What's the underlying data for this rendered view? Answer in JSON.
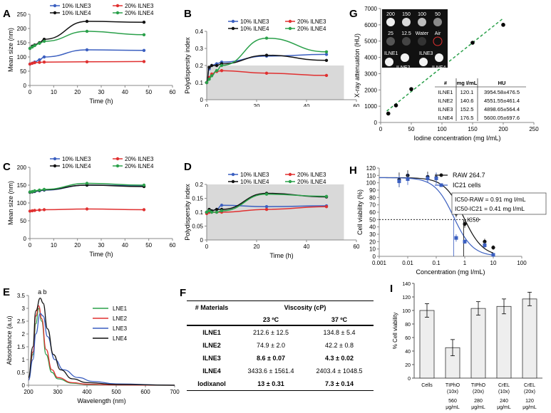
{
  "chart_data": [
    {
      "letter": "A",
      "type": "line",
      "xlabel": "Time (h)",
      "ylabel": "Mean size (nm)",
      "xlim": [
        0,
        60
      ],
      "ylim": [
        0,
        250
      ],
      "xticks": [
        0,
        10,
        20,
        30,
        40,
        50,
        60
      ],
      "yticks": [
        0,
        50,
        100,
        150,
        200,
        250
      ],
      "shade": null,
      "legend": [
        "10% ILNE3",
        "20% ILNE3",
        "10% ILNE4",
        "20% ILNE4"
      ],
      "series": [
        {
          "name": "10% ILNE3",
          "color": "#3b5fc0",
          "x": [
            0,
            1,
            2,
            4,
            6,
            24,
            48
          ],
          "y": [
            75,
            78,
            82,
            90,
            100,
            125,
            123
          ]
        },
        {
          "name": "20% ILNE3",
          "color": "#e03030",
          "x": [
            0,
            1,
            2,
            4,
            6,
            24,
            48
          ],
          "y": [
            75,
            78,
            80,
            81,
            82,
            83,
            84
          ]
        },
        {
          "name": "10% ILNE4",
          "color": "#111111",
          "x": [
            0,
            1,
            2,
            4,
            6,
            24,
            48
          ],
          "y": [
            130,
            138,
            142,
            150,
            162,
            225,
            222
          ]
        },
        {
          "name": "20% ILNE4",
          "color": "#2aa04a",
          "x": [
            0,
            1,
            2,
            4,
            6,
            24,
            48
          ],
          "y": [
            130,
            135,
            140,
            148,
            155,
            190,
            178
          ]
        }
      ]
    },
    {
      "letter": "B",
      "type": "line",
      "xlabel": "Time (h)",
      "ylabel": "Polydispersity index",
      "xlim": [
        0,
        60
      ],
      "ylim": [
        0,
        0.4
      ],
      "xticks": [
        0,
        20,
        40,
        60
      ],
      "yticks": [
        0,
        0.1,
        0.2,
        0.3,
        0.4
      ],
      "shade": {
        "xmax": 55,
        "ymax": 0.2
      },
      "legend": [
        "10% ILNE3",
        "20% ILNE3",
        "10% ILNE4",
        "20% ILNE4"
      ],
      "series": [
        {
          "name": "10% ILNE3",
          "color": "#3b5fc0",
          "x": [
            0,
            1,
            2,
            4,
            6,
            24,
            48
          ],
          "y": [
            0.1,
            0.18,
            0.2,
            0.21,
            0.22,
            0.255,
            0.265
          ]
        },
        {
          "name": "20% ILNE3",
          "color": "#e03030",
          "x": [
            0,
            1,
            2,
            4,
            6,
            24,
            48
          ],
          "y": [
            0.1,
            0.13,
            0.15,
            0.165,
            0.17,
            0.155,
            0.142
          ]
        },
        {
          "name": "10% ILNE4",
          "color": "#111111",
          "x": [
            0,
            1,
            2,
            4,
            6,
            24,
            48
          ],
          "y": [
            0.1,
            0.19,
            0.2,
            0.2,
            0.21,
            0.26,
            0.23
          ]
        },
        {
          "name": "20% ILNE4",
          "color": "#2aa04a",
          "x": [
            0,
            1,
            2,
            4,
            6,
            24,
            48
          ],
          "y": [
            0.1,
            0.12,
            0.14,
            0.17,
            0.2,
            0.36,
            0.28
          ]
        }
      ]
    },
    {
      "letter": "C",
      "type": "line",
      "xlabel": "Time (h)",
      "ylabel": "Mean size (nm)",
      "xlim": [
        0,
        60
      ],
      "ylim": [
        0,
        200
      ],
      "xticks": [
        0,
        10,
        20,
        30,
        40,
        50,
        60
      ],
      "yticks": [
        0,
        50,
        100,
        150,
        200
      ],
      "shade": null,
      "legend": [
        "10% ILNE3",
        "20% ILNE3",
        "10% ILNE4",
        "20% ILNE4"
      ],
      "series": [
        {
          "name": "10% ILNE3",
          "color": "#3b5fc0",
          "x": [
            0,
            1,
            2,
            4,
            6,
            24,
            48
          ],
          "y": [
            130,
            131,
            132,
            134,
            136,
            150,
            148
          ]
        },
        {
          "name": "20% ILNE3",
          "color": "#e03030",
          "x": [
            0,
            1,
            2,
            4,
            6,
            24,
            48
          ],
          "y": [
            77,
            78,
            79,
            80,
            81,
            83,
            81
          ]
        },
        {
          "name": "10% ILNE4",
          "color": "#111111",
          "x": [
            0,
            1,
            2,
            4,
            6,
            24,
            48
          ],
          "y": [
            130,
            131,
            133,
            135,
            137,
            150,
            146
          ]
        },
        {
          "name": "20% ILNE4",
          "color": "#2aa04a",
          "x": [
            0,
            1,
            2,
            4,
            6,
            24,
            48
          ],
          "y": [
            131,
            132,
            134,
            136,
            138,
            155,
            150
          ]
        }
      ]
    },
    {
      "letter": "D",
      "type": "line",
      "xlabel": "Time (h)",
      "ylabel": "Polydispersity index",
      "xlim": [
        0,
        60
      ],
      "ylim": [
        0,
        0.2
      ],
      "xticks": [
        0,
        20,
        40,
        60
      ],
      "yticks": [
        0,
        0.05,
        0.1,
        0.15,
        0.2
      ],
      "shade": {
        "xmax": 55,
        "ymax": 0.2
      },
      "legend": [
        "10% ILNE3",
        "20% ILNE3",
        "10% ILNE4",
        "20% ILNE4"
      ],
      "series": [
        {
          "name": "10% ILNE3",
          "color": "#3b5fc0",
          "x": [
            0,
            1,
            2,
            4,
            6,
            24,
            48
          ],
          "y": [
            0.1,
            0.1,
            0.105,
            0.11,
            0.125,
            0.12,
            0.123
          ]
        },
        {
          "name": "20% ILNE3",
          "color": "#e03030",
          "x": [
            0,
            1,
            2,
            4,
            6,
            24,
            48
          ],
          "y": [
            0.095,
            0.1,
            0.1,
            0.1,
            0.1,
            0.11,
            0.12
          ]
        },
        {
          "name": "10% ILNE4",
          "color": "#111111",
          "x": [
            0,
            1,
            2,
            4,
            6,
            24,
            48
          ],
          "y": [
            0.1,
            0.11,
            0.105,
            0.11,
            0.11,
            0.168,
            0.155
          ]
        },
        {
          "name": "20% ILNE4",
          "color": "#2aa04a",
          "x": [
            0,
            1,
            2,
            4,
            6,
            24,
            48
          ],
          "y": [
            0.1,
            0.105,
            0.1,
            0.1,
            0.105,
            0.165,
            0.157
          ]
        }
      ]
    },
    {
      "letter": "E",
      "type": "line",
      "xlabel": "Wavelength (nm)",
      "ylabel": "Absorbance (a.u)",
      "xlim": [
        200,
        700
      ],
      "ylim": [
        0,
        3.5
      ],
      "xticks": [
        200,
        300,
        400,
        500,
        600,
        700
      ],
      "yticks": [
        0,
        0.5,
        1,
        1.5,
        2,
        2.5,
        3,
        3.5
      ],
      "annotations": [
        "a",
        "b"
      ],
      "legend": [
        "LNE1",
        "LNE2",
        "LNE3",
        "LNE4"
      ],
      "series": [
        {
          "name": "LNE1",
          "color": "#2aa04a",
          "x": [
            200,
            215,
            225,
            235,
            245,
            260,
            280,
            300,
            350,
            400,
            500,
            700
          ],
          "y": [
            0.2,
            1.2,
            2.4,
            3.0,
            2.5,
            1.2,
            0.5,
            0.25,
            0.08,
            0.03,
            0.01,
            0
          ]
        },
        {
          "name": "LNE2",
          "color": "#e03030",
          "x": [
            200,
            215,
            225,
            235,
            245,
            260,
            280,
            300,
            350,
            400,
            500,
            700
          ],
          "y": [
            0.2,
            1.3,
            2.7,
            3.1,
            2.6,
            1.4,
            0.6,
            0.3,
            0.1,
            0.04,
            0.01,
            0
          ]
        },
        {
          "name": "LNE3",
          "color": "#3b5fc0",
          "x": [
            200,
            215,
            225,
            240,
            250,
            265,
            290,
            320,
            370,
            420,
            500,
            700
          ],
          "y": [
            0.2,
            1.0,
            2.0,
            2.8,
            2.7,
            1.9,
            1.0,
            0.6,
            0.3,
            0.15,
            0.05,
            0
          ]
        },
        {
          "name": "LNE4",
          "color": "#111111",
          "x": [
            200,
            215,
            225,
            240,
            250,
            265,
            285,
            310,
            350,
            400,
            500,
            700
          ],
          "y": [
            0.3,
            1.5,
            2.9,
            3.4,
            3.2,
            2.2,
            1.2,
            0.6,
            0.25,
            0.1,
            0.03,
            0
          ]
        }
      ]
    },
    {
      "letter": "G",
      "type": "scatter",
      "xlabel": "Iodine concentration (mg I/mL)",
      "ylabel": "X-ray attenuation (HU)",
      "xlim": [
        0,
        250
      ],
      "ylim": [
        0,
        7000
      ],
      "xticks": [
        0,
        50,
        100,
        150,
        200,
        250
      ],
      "yticks": [
        0,
        1000,
        2000,
        3000,
        4000,
        5000,
        6000,
        7000
      ],
      "trendline": {
        "color": "#2aa04a",
        "x": [
          10,
          200
        ],
        "y": [
          700,
          6400
        ]
      },
      "points": {
        "x": [
          12.5,
          25,
          50,
          100,
          150,
          200
        ],
        "y": [
          550,
          1050,
          2050,
          3800,
          4900,
          6000
        ]
      },
      "inset_labels": [
        "200",
        "150",
        "100",
        "50",
        "25",
        "12.5",
        "Water",
        "Air",
        "ILNE1",
        "ILNE3",
        "ILNE2",
        "ILNE4"
      ],
      "table": {
        "headers": [
          "#",
          "mg I/mL",
          "HU"
        ],
        "rows": [
          [
            "ILNE1",
            "120.1",
            "3954.58±476.5"
          ],
          [
            "ILNE2",
            "140.6",
            "4551.55±461.4"
          ],
          [
            "ILNE3",
            "152.5",
            "4898.65±564.4"
          ],
          [
            "ILNE4",
            "176.5",
            "5600.05±697.6"
          ]
        ]
      }
    },
    {
      "letter": "H",
      "type": "scatter",
      "xlabel": "Concentration (mg I/mL)",
      "ylabel": "Cell viability (%)",
      "xscale": "log",
      "xlim": [
        0.001,
        100
      ],
      "ylim": [
        0,
        120
      ],
      "xticks": [
        0.001,
        0.01,
        0.1,
        1,
        10,
        100
      ],
      "xticklabels": [
        "0.001",
        "0.01",
        "0.1",
        "1",
        "10",
        "100"
      ],
      "yticks": [
        0,
        10,
        20,
        30,
        40,
        50,
        60,
        70,
        80,
        90,
        100,
        110,
        120
      ],
      "legend": [
        "RAW 264.7",
        "IC21 cells"
      ],
      "ic_text": [
        "IC50-RAW = 0.91 mg I/mL",
        "IC50-IC21 = 0.41 mg I/mL"
      ],
      "ic50_label": "IC50",
      "series": [
        {
          "name": "RAW 264.7",
          "color": "#111111",
          "x": [
            0.005,
            0.01,
            0.05,
            0.1,
            0.5,
            1,
            5,
            10
          ],
          "y": [
            104,
            110,
            108,
            107,
            58,
            44,
            20,
            12
          ],
          "err": [
            10,
            7,
            7,
            6,
            5,
            5,
            4,
            3
          ]
        },
        {
          "name": "IC21 cells",
          "color": "#3b5fc0",
          "x": [
            0.005,
            0.01,
            0.05,
            0.1,
            0.5,
            1,
            5,
            10
          ],
          "y": [
            102,
            105,
            106,
            106,
            25,
            20,
            15,
            2
          ],
          "err": [
            8,
            8,
            6,
            8,
            5,
            3,
            4,
            2
          ]
        }
      ]
    },
    {
      "letter": "I",
      "type": "bar",
      "ylabel": "% Cell viability",
      "ylim": [
        0,
        140
      ],
      "yticks": [
        0,
        20,
        40,
        60,
        80,
        100,
        120,
        140
      ],
      "categories": [
        "Cells",
        "TIPhO (10x)",
        "TIPhO (20x)",
        "CrEL (10x)",
        "CrEL (20x)"
      ],
      "sublabels": [
        "",
        "560 μg/mL",
        "280 μg/mL",
        "240 μg/mL",
        "120 μg/mL"
      ],
      "values": [
        100,
        45,
        103,
        106,
        117
      ],
      "errors": [
        10,
        12,
        10,
        11,
        10
      ]
    }
  ],
  "panel_F": {
    "letter": "F",
    "col_materials": "# Materials",
    "col_viscosity": "Viscosity (cP)",
    "col_23": "23 ºC",
    "col_37": "37 ºC",
    "rows": [
      {
        "name": "ILNE1",
        "v23": "212.6 ± 12.5",
        "v37": "134.8 ± 5.4",
        "bold": false
      },
      {
        "name": "ILNE2",
        "v23": "74.9 ± 2.0",
        "v37": "42.2 ± 0.8",
        "bold": false
      },
      {
        "name": "ILNE3",
        "v23": "8.6 ± 0.07",
        "v37": "4.3 ± 0.02",
        "bold": true
      },
      {
        "name": "ILNE4",
        "v23": "3433.6 ± 1561.4",
        "v37": "2403.4 ± 1048.5",
        "bold": false
      },
      {
        "name": "Iodixanol",
        "v23": "13 ± 0.31",
        "v37": "7.3 ± 0.14",
        "bold": true
      }
    ]
  }
}
